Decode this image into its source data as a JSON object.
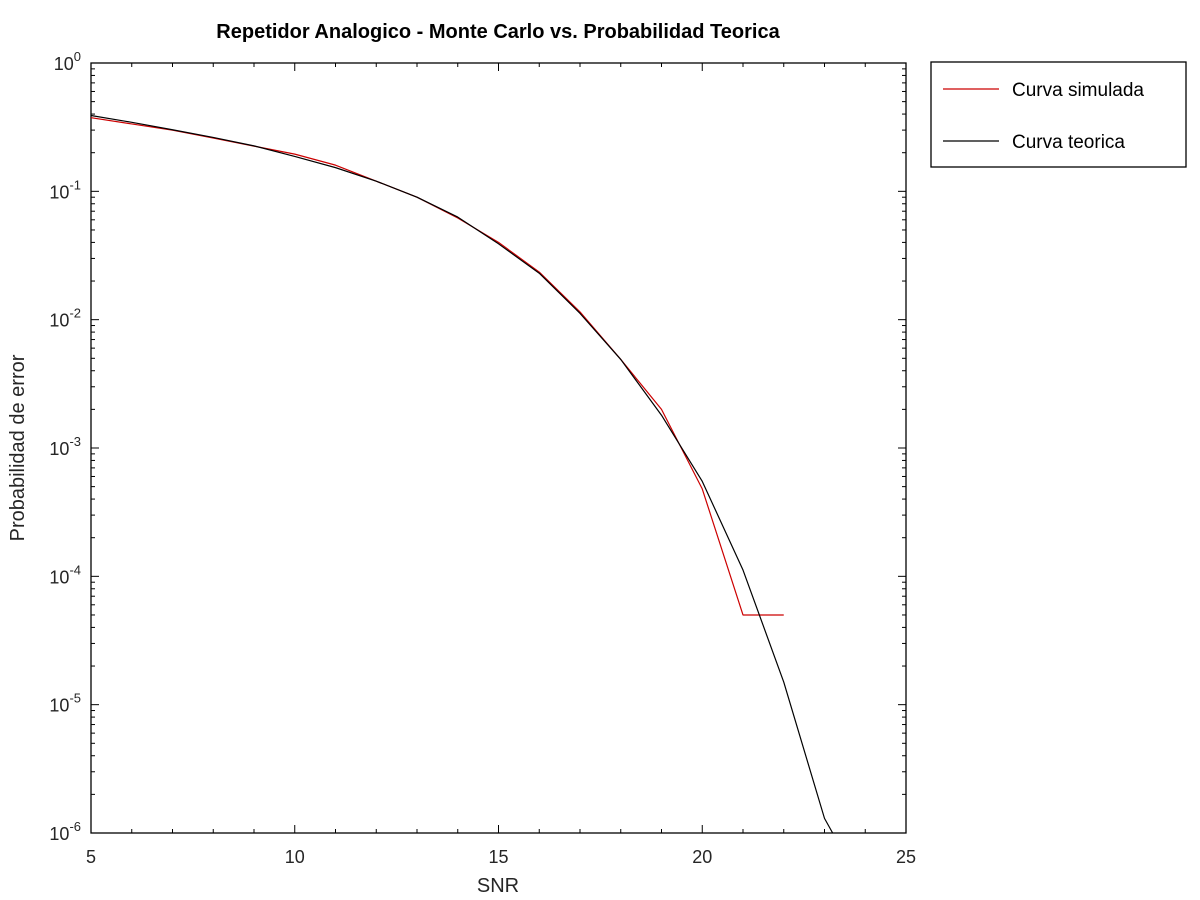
{
  "chart_data": {
    "type": "line",
    "title": "Repetidor Analogico - Monte Carlo vs. Probabilidad Teorica",
    "xlabel": "SNR",
    "ylabel": "Probabilidad de error",
    "xlim": [
      5,
      25
    ],
    "ylim": [
      1e-06,
      1
    ],
    "yscale": "log",
    "grid": false,
    "legend_position": "outside-top-right",
    "x_ticks": [
      5,
      10,
      15,
      20,
      25
    ],
    "y_ticks": [
      {
        "base": "10",
        "exp": "-6",
        "value": 1e-06
      },
      {
        "base": "10",
        "exp": "-5",
        "value": 1e-05
      },
      {
        "base": "10",
        "exp": "-4",
        "value": 0.0001
      },
      {
        "base": "10",
        "exp": "-3",
        "value": 0.001
      },
      {
        "base": "10",
        "exp": "-2",
        "value": 0.01
      },
      {
        "base": "10",
        "exp": "-1",
        "value": 0.1
      },
      {
        "base": "10",
        "exp": "0",
        "value": 1
      }
    ],
    "series": [
      {
        "name": "Curva simulada",
        "color": "#cc0000",
        "x": [
          5,
          6,
          7,
          8,
          9,
          10,
          11,
          12,
          13,
          14,
          15,
          16,
          17,
          18,
          19,
          20,
          21,
          22
        ],
        "y": [
          0.375,
          0.335,
          0.3,
          0.26,
          0.225,
          0.195,
          0.16,
          0.12,
          0.09,
          0.062,
          0.04,
          0.0235,
          0.0115,
          0.0049,
          0.002,
          0.00048,
          5e-05,
          5e-05
        ]
      },
      {
        "name": "Curva teorica",
        "color": "#000000",
        "x": [
          5,
          6,
          7,
          8,
          9,
          10,
          11,
          12,
          13,
          14,
          15,
          16,
          17,
          18,
          19,
          20,
          21,
          22,
          23,
          23.2
        ],
        "y": [
          0.39,
          0.345,
          0.302,
          0.263,
          0.226,
          0.187,
          0.153,
          0.12,
          0.09,
          0.063,
          0.039,
          0.023,
          0.0112,
          0.0049,
          0.0018,
          0.00055,
          0.000112,
          1.5e-05,
          1.3e-06,
          1e-06
        ]
      }
    ]
  }
}
